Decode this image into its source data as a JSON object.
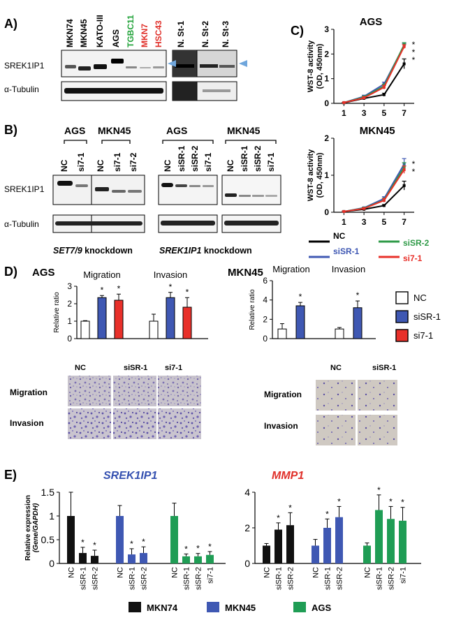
{
  "panels": {
    "A": "A)",
    "B": "B)",
    "C": "C)",
    "D": "D)",
    "E": "E)"
  },
  "panelA": {
    "lanes_left": [
      "MKN74",
      "MKN45",
      "KATO-III",
      "AGS",
      "TGBC11",
      "MKN7",
      "HSC43"
    ],
    "lane_colors_left": [
      "#000000",
      "#000000",
      "#000000",
      "#000000",
      "#22a33a",
      "#e0302a",
      "#e0302a"
    ],
    "lanes_right": [
      "N. St-1",
      "N. St-2",
      "N. St-3"
    ],
    "row_labels": [
      "SREK1IP1",
      "α-Tubulin"
    ],
    "arrow_color": "#6fa6dc"
  },
  "panelB": {
    "group_left": [
      "AGS",
      "MKN45"
    ],
    "lanes_left": [
      "NC",
      "si7-1",
      "NC",
      "si7-1",
      "si7-2"
    ],
    "group_right": [
      "AGS",
      "MKN45"
    ],
    "lanes_right": [
      "NC",
      "siSR-1",
      "siSR-2",
      "si7-1",
      "NC",
      "siSR-1",
      "siSR-2",
      "si7-1"
    ],
    "row_labels": [
      "SREK1IP1",
      "α-Tubulin"
    ],
    "caption_left_italic": "SET7/9",
    "caption_left_rest": " knockdown",
    "caption_right_italic": "SREK1IP1",
    "caption_right_rest": " knockdown"
  },
  "panelD": {
    "legend": [
      {
        "label": "NC",
        "color": "#ffffff"
      },
      {
        "label": "siSR-1",
        "color": "#3f58b3"
      },
      {
        "label": "si7-1",
        "color": "#e8302a"
      }
    ],
    "image_cols_ags": [
      "NC",
      "siSR-1",
      "si7-1"
    ],
    "image_cols_mkn45": [
      "NC",
      "siSR-1"
    ],
    "image_rows": [
      "Migration",
      "Invasion"
    ]
  },
  "panelE": {
    "legend": [
      {
        "label": "MKN74",
        "color": "#111111"
      },
      {
        "label": "MKN45",
        "color": "#3f58b3"
      },
      {
        "label": "AGS",
        "color": "#1f9d55"
      }
    ]
  },
  "chart_data": [
    {
      "id": "C-AGS",
      "type": "line",
      "title": "AGS",
      "ylabel": "WST-8 activity\n(OD, 450nm)",
      "x": [
        1,
        3,
        5,
        7
      ],
      "xlim": [
        0,
        8
      ],
      "ylim": [
        0,
        3
      ],
      "yticks": [
        0,
        1,
        2,
        3
      ],
      "series": [
        {
          "name": "NC",
          "color": "#000000",
          "values": [
            0.02,
            0.2,
            0.35,
            1.6
          ],
          "err": [
            0.01,
            0.04,
            0.06,
            0.2
          ]
        },
        {
          "name": "siSR-1",
          "color": "#3f58b3",
          "values": [
            0.03,
            0.28,
            0.78,
            2.35
          ],
          "err": [
            0.01,
            0.05,
            0.08,
            0.08
          ]
        },
        {
          "name": "siSR-2",
          "color": "#2e9a47",
          "values": [
            0.03,
            0.25,
            0.7,
            2.38
          ],
          "err": [
            0.01,
            0.05,
            0.08,
            0.08
          ]
        },
        {
          "name": "si7-1",
          "color": "#e8302a",
          "values": [
            0.03,
            0.22,
            0.65,
            2.3
          ],
          "err": [
            0.01,
            0.05,
            0.08,
            0.08
          ]
        }
      ],
      "annotations": [
        "*",
        "*",
        "*"
      ]
    },
    {
      "id": "C-MKN45",
      "type": "line",
      "title": "MKN45",
      "ylabel": "WST-8 activity\n(OD, 450nm)",
      "x": [
        1,
        3,
        5,
        7
      ],
      "xlim": [
        0,
        8
      ],
      "ylim": [
        0,
        2
      ],
      "yticks": [
        0,
        1,
        2
      ],
      "series": [
        {
          "name": "NC",
          "color": "#000000",
          "values": [
            0.02,
            0.08,
            0.18,
            0.72
          ],
          "err": [
            0.01,
            0.02,
            0.03,
            0.12
          ]
        },
        {
          "name": "siSR-1",
          "color": "#3f58b3",
          "values": [
            0.02,
            0.12,
            0.37,
            1.3
          ],
          "err": [
            0.01,
            0.02,
            0.05,
            0.15
          ]
        },
        {
          "name": "siSR-2",
          "color": "#2e9a47",
          "values": [
            0.02,
            0.11,
            0.33,
            1.22
          ],
          "err": [
            0.01,
            0.02,
            0.05,
            0.12
          ]
        },
        {
          "name": "si7-1",
          "color": "#e8302a",
          "values": [
            0.02,
            0.1,
            0.32,
            1.15
          ],
          "err": [
            0.01,
            0.02,
            0.05,
            0.1
          ]
        }
      ],
      "annotations": [
        "*",
        "*"
      ],
      "xticks": [
        "1",
        "3",
        "5",
        "7"
      ]
    },
    {
      "id": "D-AGS",
      "type": "bar",
      "title": "AGS",
      "ylabel": "Relative ratio",
      "ylim": [
        0,
        3
      ],
      "yticks": [
        0,
        1,
        2,
        3
      ],
      "groups": [
        {
          "label": "Migration",
          "values": [
            1.0,
            2.35,
            2.2
          ],
          "err": [
            0.03,
            0.12,
            0.35
          ],
          "stars": [
            "",
            "*",
            "*"
          ]
        },
        {
          "label": "Invasion",
          "values": [
            1.0,
            2.35,
            1.8
          ],
          "err": [
            0.4,
            0.3,
            0.55
          ],
          "stars": [
            "",
            "*",
            "*"
          ]
        }
      ],
      "colors": [
        "#ffffff",
        "#3f58b3",
        "#e8302a"
      ]
    },
    {
      "id": "D-MKN45",
      "type": "bar",
      "title": "MKN45",
      "ylabel": "Relative ratio",
      "ylim": [
        0,
        6
      ],
      "yticks": [
        0,
        2,
        4,
        6
      ],
      "groups": [
        {
          "label": "Migration",
          "values": [
            1.0,
            3.4
          ],
          "err": [
            0.55,
            0.35
          ],
          "stars": [
            "",
            "*"
          ]
        },
        {
          "label": "Invasion",
          "values": [
            1.0,
            3.2
          ],
          "err": [
            0.15,
            0.7
          ],
          "stars": [
            "",
            "*"
          ]
        }
      ],
      "colors": [
        "#ffffff",
        "#3f58b3"
      ]
    },
    {
      "id": "E-SREK1IP1",
      "type": "bar",
      "title": "SREK1IP1",
      "title_color": "#3450b0",
      "ylabel": "Relative expression\n(Gene/GAPDH)",
      "ylim": [
        0,
        1.5
      ],
      "yticks": [
        0,
        0.5,
        1,
        1.5
      ],
      "groups": [
        {
          "color": "#111111",
          "labels": [
            "NC",
            "siSR-1",
            "siSR-2"
          ],
          "values": [
            1.0,
            0.22,
            0.16
          ],
          "err": [
            0.5,
            0.12,
            0.12
          ],
          "stars": [
            "",
            "*",
            "*"
          ]
        },
        {
          "color": "#3f58b3",
          "labels": [
            "NC",
            "siSR-1",
            "siSR-2"
          ],
          "values": [
            1.0,
            0.19,
            0.22
          ],
          "err": [
            0.22,
            0.12,
            0.13
          ],
          "stars": [
            "",
            "*",
            "*"
          ]
        },
        {
          "color": "#1f9d55",
          "labels": [
            "NC",
            "siSR-1",
            "siSR-2",
            "si7-1"
          ],
          "values": [
            1.0,
            0.15,
            0.15,
            0.18
          ],
          "err": [
            0.27,
            0.05,
            0.06,
            0.07
          ],
          "stars": [
            "",
            "*",
            "*",
            "*"
          ]
        }
      ]
    },
    {
      "id": "E-MMP1",
      "type": "bar",
      "title": "MMP1",
      "title_color": "#e0302a",
      "ylim": [
        0,
        4
      ],
      "yticks": [
        0,
        2,
        4
      ],
      "groups": [
        {
          "color": "#111111",
          "labels": [
            "NC",
            "siSR-1",
            "siSR-2"
          ],
          "values": [
            1.0,
            1.9,
            2.15
          ],
          "err": [
            0.12,
            0.38,
            0.7
          ],
          "stars": [
            "",
            "*",
            "*"
          ]
        },
        {
          "color": "#3f58b3",
          "labels": [
            "NC",
            "siSR-1",
            "siSR-2"
          ],
          "values": [
            1.0,
            2.0,
            2.6
          ],
          "err": [
            0.35,
            0.5,
            0.6
          ],
          "stars": [
            "",
            "*",
            "*"
          ]
        },
        {
          "color": "#1f9d55",
          "labels": [
            "NC",
            "siSR-1",
            "siSR-2",
            "si7-1"
          ],
          "values": [
            1.0,
            3.0,
            2.5,
            2.4
          ],
          "err": [
            0.15,
            0.85,
            0.7,
            0.75
          ],
          "stars": [
            "",
            "*",
            "*",
            "*"
          ]
        }
      ]
    }
  ]
}
